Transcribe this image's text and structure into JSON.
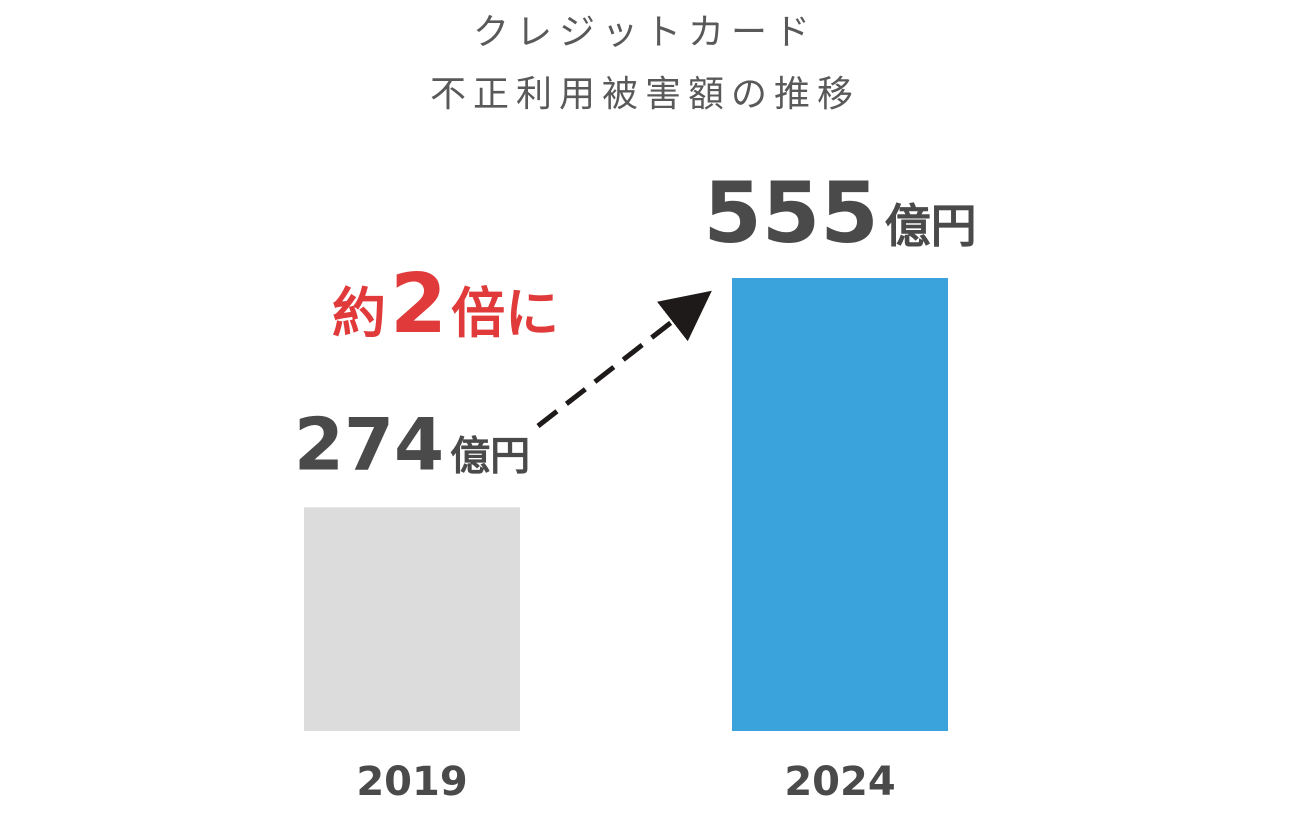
{
  "chart_data": {
    "type": "bar",
    "title": "クレジットカード",
    "subtitle": "不正利用被害額の推移",
    "categories": [
      "2019",
      "2024"
    ],
    "values": [
      274,
      555
    ],
    "value_labels": [
      "274",
      "555"
    ],
    "unit": "億円",
    "colors": [
      "#dcdcdc",
      "#3ba3dc"
    ],
    "annotation": {
      "prefix": "約",
      "number": "2",
      "suffix": "倍に",
      "color": "#e03a3a"
    },
    "xlabel": "",
    "ylabel": "",
    "ylim": [
      0,
      555
    ],
    "grid": false,
    "axes_visible": false
  }
}
